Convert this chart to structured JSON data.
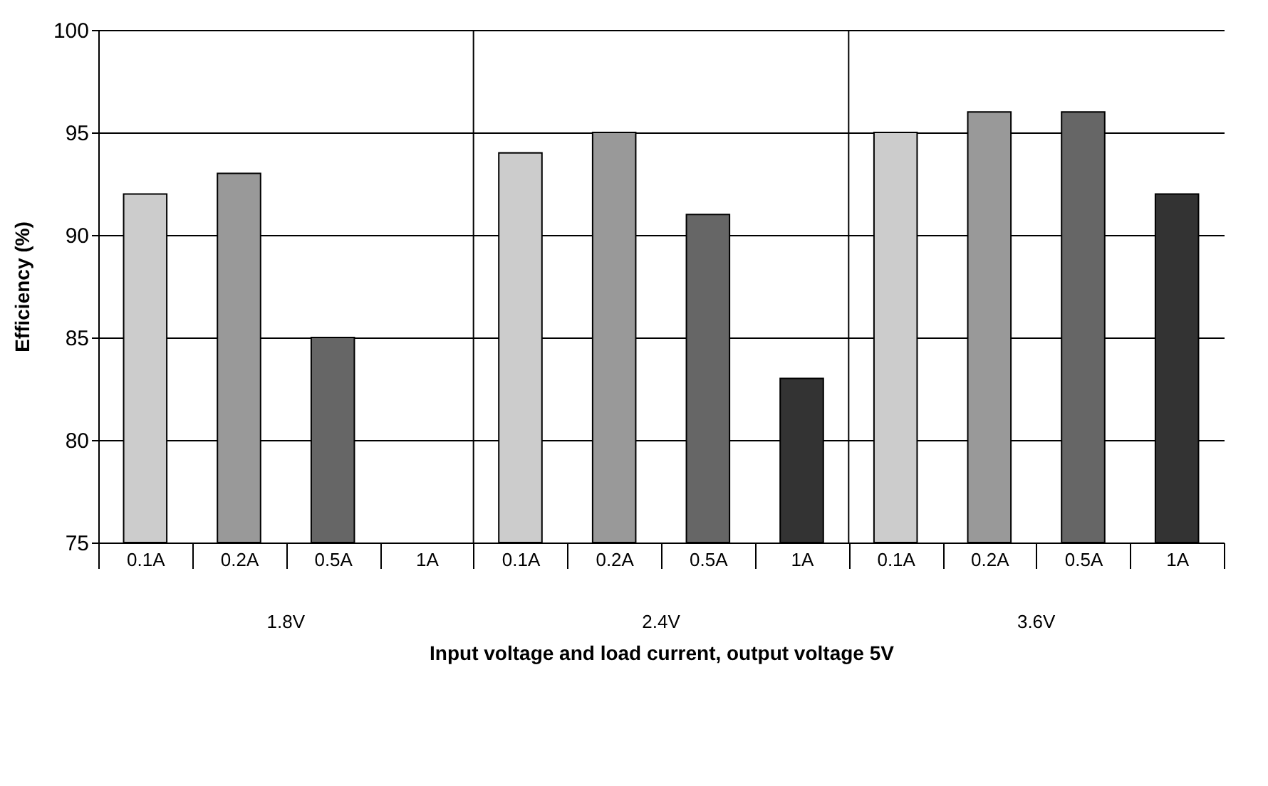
{
  "chart_data": {
    "type": "bar",
    "xlabel": "Input voltage and load current, output voltage 5V",
    "ylabel": "Efficiency (%)",
    "categories": [
      "0.1A",
      "0.2A",
      "0.5A",
      "1A",
      "0.1A",
      "0.2A",
      "0.5A",
      "1A",
      "0.1A",
      "0.2A",
      "0.5A",
      "1A"
    ],
    "values": [
      92,
      93,
      85,
      null,
      94,
      95,
      91,
      83,
      95,
      96,
      96,
      92
    ],
    "colors": [
      "#cccccc",
      "#999999",
      "#666666",
      "#333333",
      "#cccccc",
      "#999999",
      "#666666",
      "#333333",
      "#cccccc",
      "#999999",
      "#666666",
      "#333333"
    ],
    "annotations": [
      "1.8V",
      "2.4V",
      "3.6V"
    ],
    "ylim": [
      75,
      100
    ],
    "yticks": [
      75,
      80,
      85,
      90,
      95,
      100
    ],
    "grid": "y"
  }
}
